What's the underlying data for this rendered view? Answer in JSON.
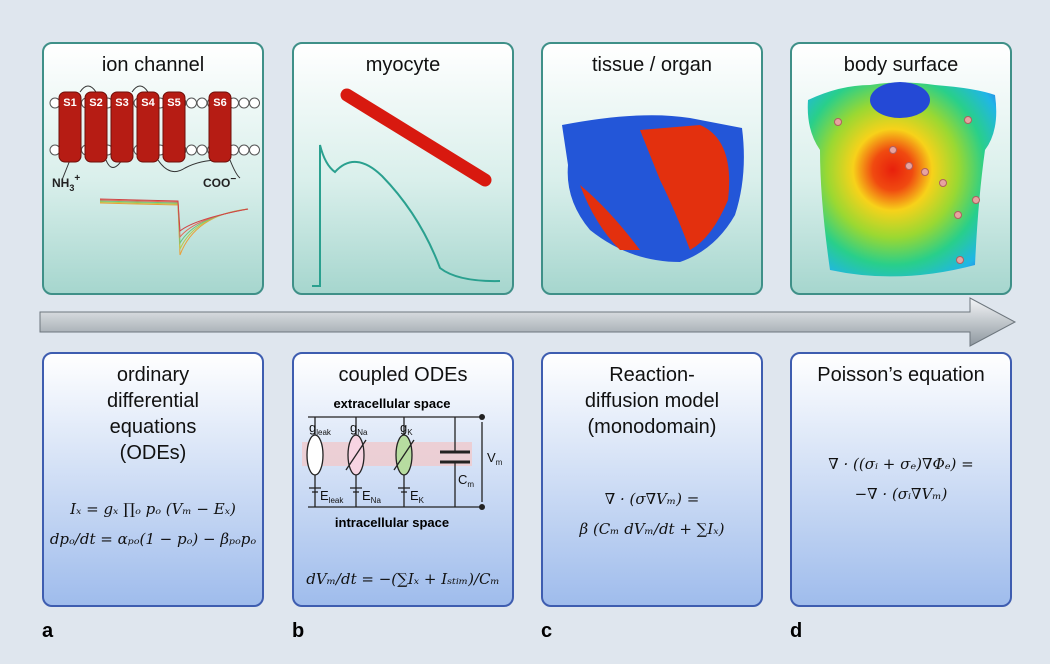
{
  "panels": [
    {
      "title": "ion channel"
    },
    {
      "title": "myocyte"
    },
    {
      "title": "tissue / organ"
    },
    {
      "title": "body surface"
    }
  ],
  "ion_channel": {
    "segments": [
      "S1",
      "S2",
      "S3",
      "S4",
      "S5",
      "S6"
    ],
    "n_terminus": {
      "base": "NH",
      "sub": "3",
      "sup": "+"
    },
    "c_terminus": {
      "base": "COO",
      "sup": "−"
    }
  },
  "circuit": {
    "extracellular": "extracellular space",
    "intracellular": "intracellular space",
    "labels": [
      {
        "base": "g",
        "sub": "leak"
      },
      {
        "base": "g",
        "sub": "Na"
      },
      {
        "base": "g",
        "sub": "K"
      },
      {
        "base": "V",
        "sub": "m"
      },
      {
        "base": "C",
        "sub": "m"
      },
      {
        "base": "E",
        "sub": "leak"
      },
      {
        "base": "E",
        "sub": "Na"
      },
      {
        "base": "E",
        "sub": "K"
      }
    ]
  },
  "models": [
    {
      "title_lines": [
        "ordinary",
        "differential",
        "equations",
        "(ODEs)"
      ],
      "equations": [
        "Iₓ = gₓ ∏ₒ pₒ (Vₘ − Eₓ)",
        "dpₒ/dt = αₚₒ(1 − pₒ) − βₚₒpₒ"
      ],
      "letter": "a"
    },
    {
      "title_lines": [
        "coupled ODEs"
      ],
      "equations": [
        "dVₘ/dt = −(∑Iₓ + Iₛₜᵢₘ)/Cₘ"
      ],
      "letter": "b"
    },
    {
      "title_lines": [
        "Reaction-",
        "diffusion model",
        "(monodomain)"
      ],
      "equations": [
        "∇ · (σ∇Vₘ) =",
        "β (Cₘ dVₘ/dt + ∑Iₓ)"
      ],
      "letter": "c"
    },
    {
      "title_lines": [
        "Poisson’s equation"
      ],
      "equations": [
        "∇ · ((σᵢ + σₑ)∇Φₑ) =",
        "−∇ · (σᵢ∇Vₘ)"
      ],
      "letter": "d"
    }
  ]
}
